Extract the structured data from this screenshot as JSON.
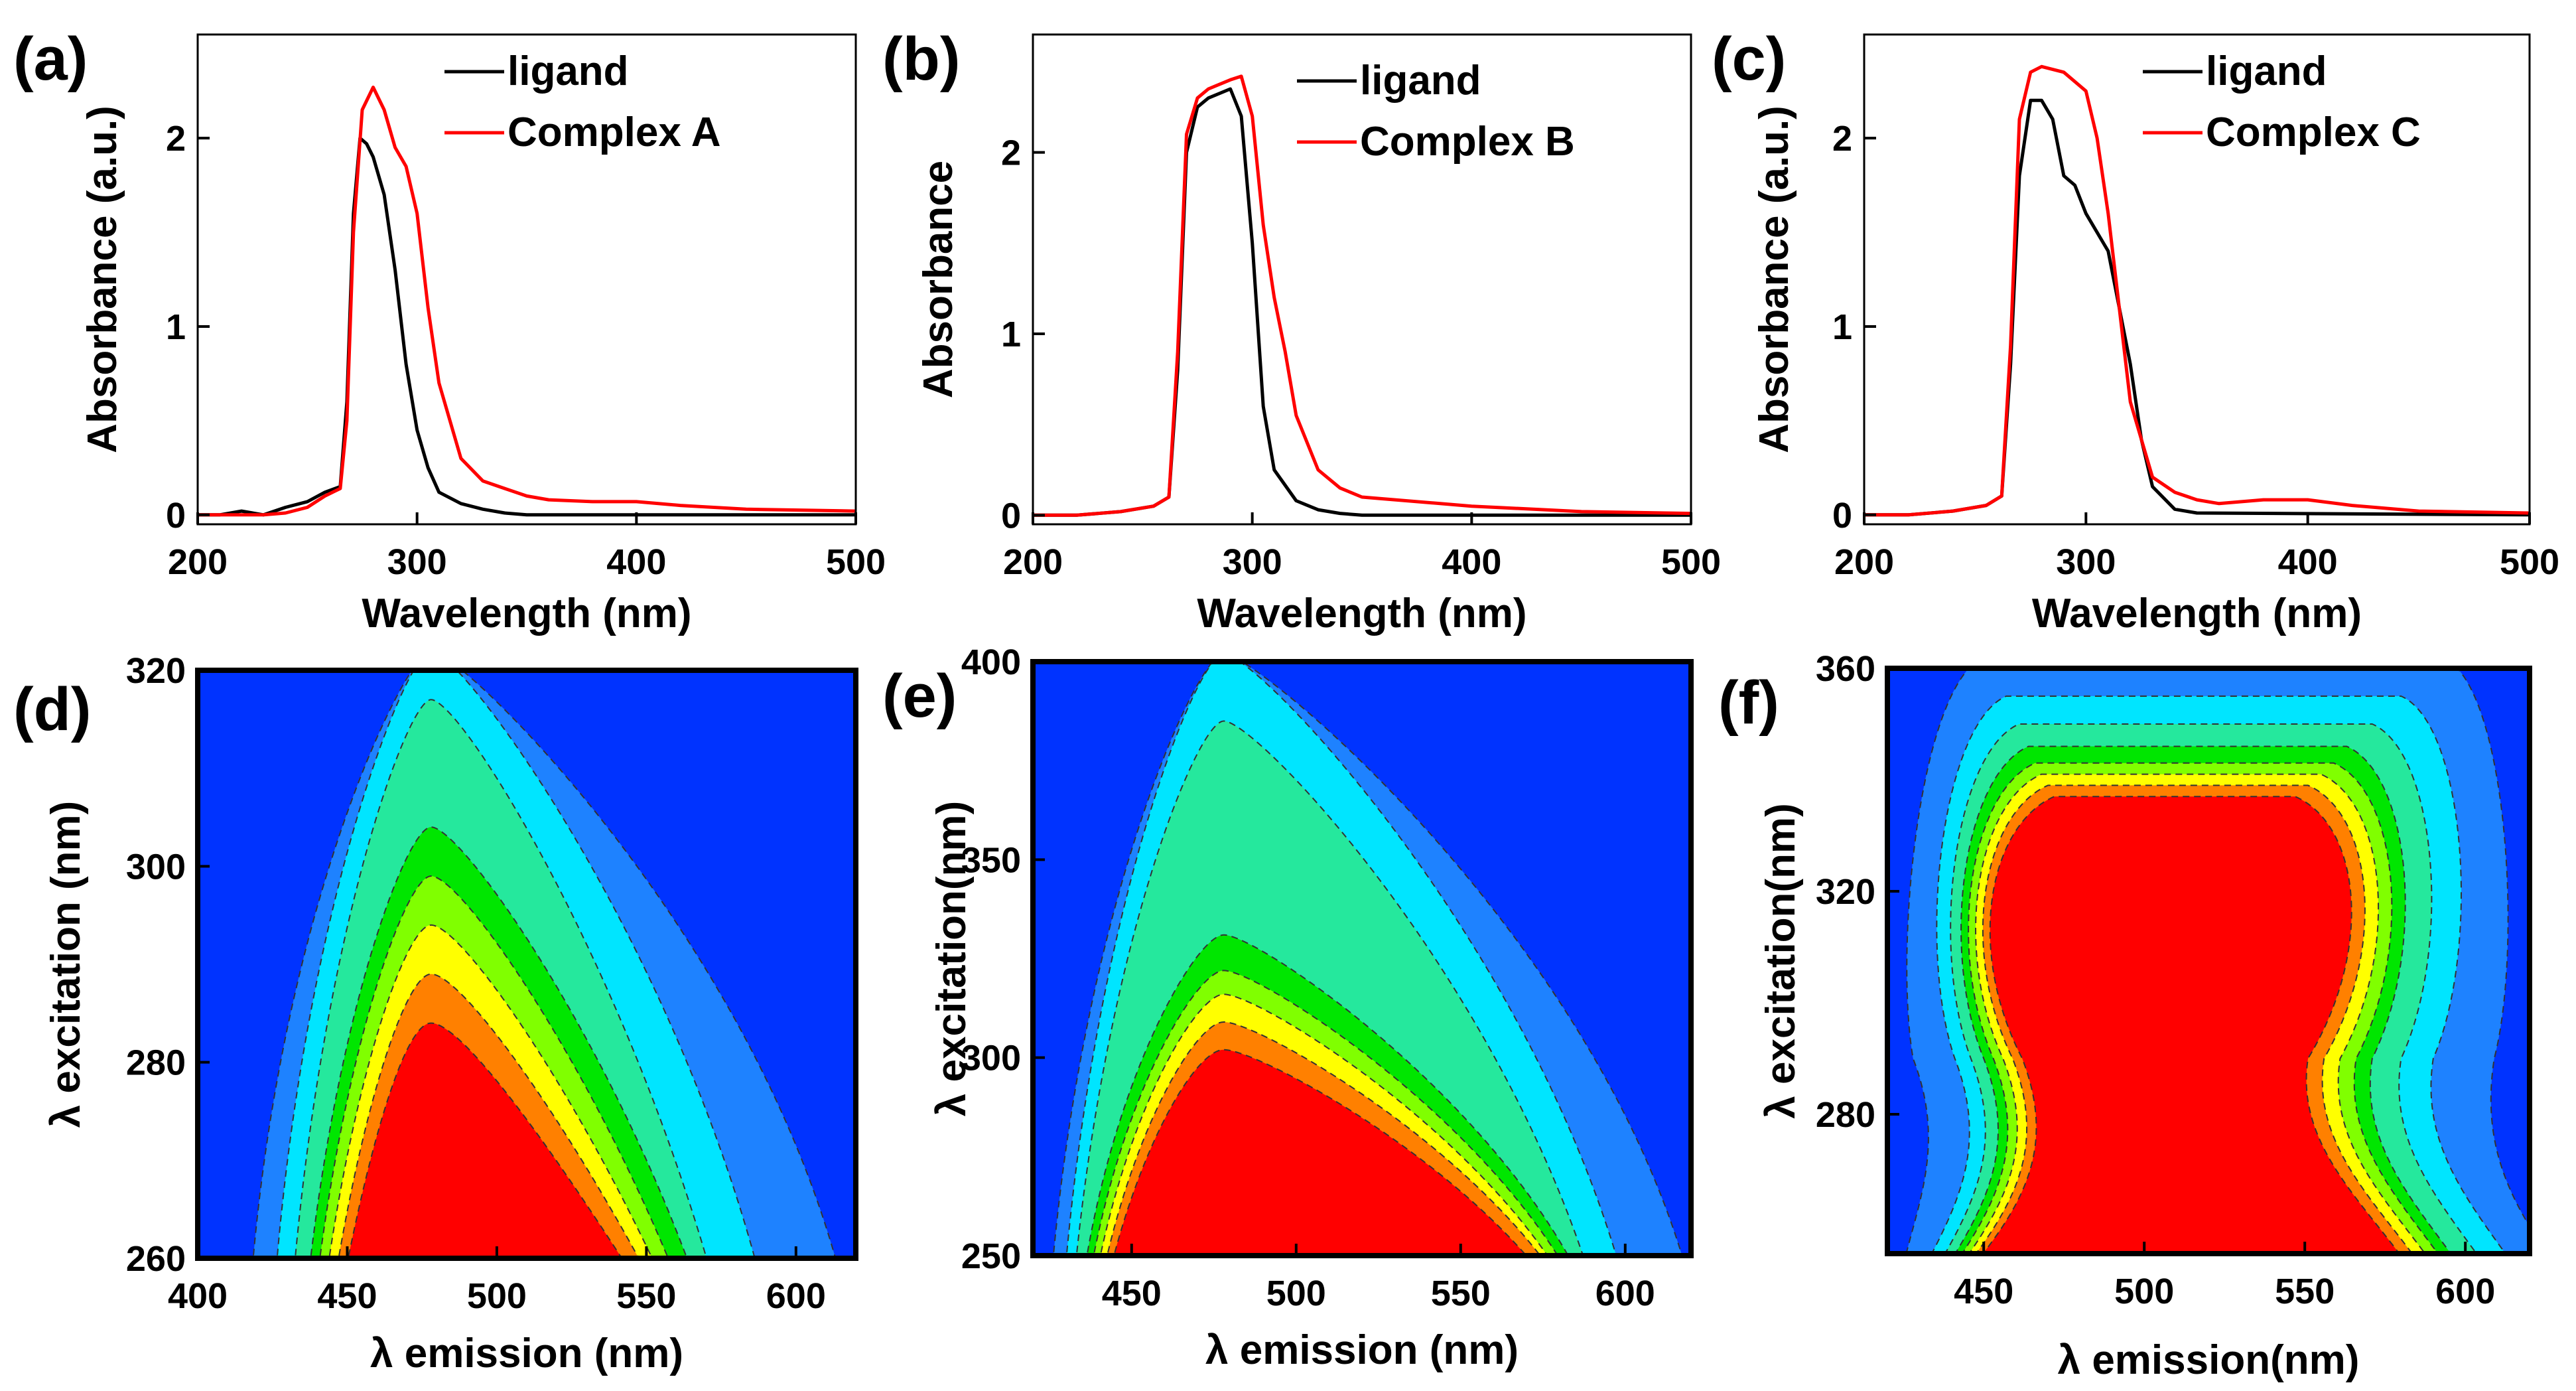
{
  "chart_data": [
    {
      "id": "a",
      "type": "line",
      "panel_label": "(a)",
      "xlabel": "Wavelength (nm)",
      "ylabel": "Absorbance (a.u.)",
      "xlim": [
        200,
        500
      ],
      "ylim": [
        -0.05,
        2.55
      ],
      "xticks": [
        200,
        300,
        400,
        500
      ],
      "yticks": [
        0,
        1,
        2
      ],
      "legend_position": "top-right",
      "series": [
        {
          "name": "ligand",
          "color": "#000000",
          "x": [
            200,
            210,
            220,
            230,
            240,
            250,
            258,
            265,
            268,
            271,
            274,
            277,
            280,
            285,
            290,
            295,
            300,
            305,
            310,
            320,
            330,
            340,
            350,
            400,
            500
          ],
          "y": [
            0.0,
            0.0,
            0.02,
            0.0,
            0.04,
            0.07,
            0.12,
            0.15,
            0.6,
            1.6,
            2.0,
            1.97,
            1.9,
            1.7,
            1.3,
            0.8,
            0.45,
            0.25,
            0.12,
            0.06,
            0.03,
            0.01,
            0.0,
            0.0,
            0.0
          ]
        },
        {
          "name": "Complex A",
          "color": "#ff0000",
          "x": [
            200,
            210,
            220,
            230,
            240,
            250,
            258,
            265,
            268,
            271,
            275,
            280,
            285,
            290,
            295,
            300,
            305,
            310,
            320,
            330,
            340,
            350,
            360,
            380,
            400,
            420,
            450,
            500
          ],
          "y": [
            0.0,
            0.0,
            0.0,
            0.0,
            0.01,
            0.04,
            0.1,
            0.14,
            0.5,
            1.5,
            2.15,
            2.27,
            2.15,
            1.95,
            1.85,
            1.6,
            1.1,
            0.7,
            0.3,
            0.18,
            0.14,
            0.1,
            0.08,
            0.07,
            0.07,
            0.05,
            0.03,
            0.02
          ]
        }
      ]
    },
    {
      "id": "b",
      "type": "line",
      "panel_label": "(b)",
      "xlabel": "Wavelength (nm)",
      "ylabel": "Absorbance",
      "xlim": [
        200,
        500
      ],
      "ylim": [
        -0.05,
        2.65
      ],
      "xticks": [
        200,
        300,
        400,
        500
      ],
      "yticks": [
        0,
        1,
        2
      ],
      "legend_position": "top-right",
      "series": [
        {
          "name": "ligand",
          "color": "#000000",
          "x": [
            200,
            220,
            240,
            255,
            262,
            266,
            270,
            275,
            280,
            290,
            295,
            300,
            305,
            310,
            320,
            330,
            340,
            350,
            500
          ],
          "y": [
            0.0,
            0.0,
            0.02,
            0.05,
            0.1,
            0.8,
            2.0,
            2.25,
            2.3,
            2.35,
            2.2,
            1.5,
            0.6,
            0.25,
            0.08,
            0.03,
            0.01,
            0.0,
            0.0
          ]
        },
        {
          "name": "Complex B",
          "color": "#ff0000",
          "x": [
            200,
            220,
            240,
            255,
            262,
            266,
            270,
            275,
            280,
            290,
            295,
            300,
            305,
            310,
            315,
            320,
            330,
            340,
            350,
            400,
            450,
            500
          ],
          "y": [
            0.0,
            0.0,
            0.02,
            0.05,
            0.1,
            0.9,
            2.1,
            2.3,
            2.35,
            2.4,
            2.42,
            2.2,
            1.6,
            1.2,
            0.9,
            0.55,
            0.25,
            0.15,
            0.1,
            0.05,
            0.02,
            0.01
          ]
        }
      ]
    },
    {
      "id": "c",
      "type": "line",
      "panel_label": "(c)",
      "xlabel": "Wavelength (nm)",
      "ylabel": "Absorbance (a.u.)",
      "xlim": [
        200,
        500
      ],
      "ylim": [
        -0.05,
        2.55
      ],
      "xticks": [
        200,
        300,
        400,
        500
      ],
      "yticks": [
        0,
        1,
        2
      ],
      "legend_position": "top-right",
      "series": [
        {
          "name": "ligand",
          "color": "#000000",
          "x": [
            200,
            220,
            240,
            255,
            262,
            266,
            270,
            275,
            280,
            285,
            290,
            295,
            300,
            310,
            320,
            325,
            330,
            340,
            350,
            500
          ],
          "y": [
            0.0,
            0.0,
            0.02,
            0.05,
            0.1,
            0.8,
            1.8,
            2.2,
            2.2,
            2.1,
            1.8,
            1.75,
            1.6,
            1.4,
            0.8,
            0.4,
            0.15,
            0.03,
            0.01,
            0.0
          ]
        },
        {
          "name": "Complex C",
          "color": "#ff0000",
          "x": [
            200,
            220,
            240,
            255,
            262,
            266,
            270,
            275,
            280,
            290,
            300,
            305,
            310,
            315,
            320,
            330,
            340,
            350,
            360,
            380,
            400,
            420,
            450,
            500
          ],
          "y": [
            0.0,
            0.0,
            0.02,
            0.05,
            0.1,
            0.9,
            2.1,
            2.35,
            2.38,
            2.35,
            2.25,
            2.0,
            1.6,
            1.1,
            0.6,
            0.2,
            0.12,
            0.08,
            0.06,
            0.08,
            0.08,
            0.05,
            0.02,
            0.01
          ]
        }
      ]
    },
    {
      "id": "d",
      "type": "heatmap",
      "panel_label": "(d)",
      "xlabel": "λ emission (nm)",
      "ylabel": "λ excitation (nm)",
      "xlim": [
        400,
        620
      ],
      "ylim": [
        260,
        320
      ],
      "xticks": [
        400,
        450,
        500,
        550,
        600
      ],
      "yticks": [
        260,
        280,
        300,
        320
      ],
      "colors": [
        "#0033ff",
        "#1e82ff",
        "#00e5ff",
        "#25e89d",
        "#00e600",
        "#80ff00",
        "#ffff00",
        "#ff8000",
        "#ff0000"
      ],
      "contour_levels": [
        {
          "level": 1,
          "base_left": 418,
          "base_right": 615,
          "peak_x": 478,
          "top_y": 322
        },
        {
          "level": 2,
          "base_left": 426,
          "base_right": 588,
          "peak_x": 478,
          "top_y": 322
        },
        {
          "level": 3,
          "base_left": 432,
          "base_right": 572,
          "peak_x": 478,
          "top_y": 317
        },
        {
          "level": 4,
          "base_left": 437,
          "base_right": 566,
          "peak_x": 478,
          "top_y": 304
        },
        {
          "level": 5,
          "base_left": 440,
          "base_right": 560,
          "peak_x": 478,
          "top_y": 299
        },
        {
          "level": 6,
          "base_left": 443,
          "base_right": 555,
          "peak_x": 478,
          "top_y": 294
        },
        {
          "level": 7,
          "base_left": 446,
          "base_right": 551,
          "peak_x": 478,
          "top_y": 289
        },
        {
          "level": 8,
          "base_left": 449,
          "base_right": 546,
          "peak_x": 478,
          "top_y": 284
        }
      ]
    },
    {
      "id": "e",
      "type": "heatmap",
      "panel_label": "(e)",
      "xlabel": "λ emission (nm)",
      "ylabel": "λ excitation(nm)",
      "xlim": [
        420,
        620
      ],
      "ylim": [
        250,
        400
      ],
      "xticks": [
        450,
        500,
        550,
        600
      ],
      "yticks": [
        250,
        300,
        350,
        400
      ],
      "colors": [
        "#0033ff",
        "#1e82ff",
        "#00e5ff",
        "#25e89d",
        "#00e600",
        "#80ff00",
        "#ffff00",
        "#ff8000",
        "#ff0000"
      ],
      "contour_levels": [
        {
          "level": 1,
          "base_left": 426,
          "base_right": 618,
          "peak_x": 478,
          "top_y": 402
        },
        {
          "level": 2,
          "base_left": 430,
          "base_right": 598,
          "peak_x": 478,
          "top_y": 402
        },
        {
          "level": 3,
          "base_left": 433,
          "base_right": 588,
          "peak_x": 478,
          "top_y": 385
        },
        {
          "level": 4,
          "base_left": 436,
          "base_right": 584,
          "peak_x": 478,
          "top_y": 331
        },
        {
          "level": 5,
          "base_left": 438,
          "base_right": 581,
          "peak_x": 478,
          "top_y": 322
        },
        {
          "level": 6,
          "base_left": 440,
          "base_right": 578,
          "peak_x": 478,
          "top_y": 316
        },
        {
          "level": 7,
          "base_left": 442,
          "base_right": 576,
          "peak_x": 478,
          "top_y": 309
        },
        {
          "level": 8,
          "base_left": 444,
          "base_right": 572,
          "peak_x": 478,
          "top_y": 302
        }
      ]
    },
    {
      "id": "f",
      "type": "heatmap",
      "panel_label": "(f)",
      "xlabel": "λ emission(nm)",
      "ylabel": "λ excitation(nm)",
      "xlim": [
        420,
        620
      ],
      "ylim": [
        255,
        360
      ],
      "xticks": [
        450,
        500,
        550,
        600
      ],
      "yticks": [
        280,
        320,
        360
      ],
      "colors": [
        "#0033ff",
        "#1e82ff",
        "#00e5ff",
        "#25e89d",
        "#00e600",
        "#80ff00",
        "#ffff00",
        "#ff8000",
        "#ff0000"
      ],
      "contour_levels": [
        {
          "level": 1,
          "left_x": 430,
          "right_x": 613,
          "top_y": 362,
          "waist": 0
        },
        {
          "level": 2,
          "left_x": 437,
          "right_x": 600,
          "top_y": 355,
          "waist": 6
        },
        {
          "level": 3,
          "left_x": 441,
          "right_x": 591,
          "top_y": 350,
          "waist": 7
        },
        {
          "level": 4,
          "left_x": 444,
          "right_x": 583,
          "top_y": 346,
          "waist": 8
        },
        {
          "level": 5,
          "left_x": 446,
          "right_x": 579,
          "top_y": 343,
          "waist": 9
        },
        {
          "level": 6,
          "left_x": 448,
          "right_x": 575,
          "top_y": 341,
          "waist": 10
        },
        {
          "level": 7,
          "left_x": 450,
          "right_x": 571,
          "top_y": 339,
          "waist": 11
        },
        {
          "level": 8,
          "left_x": 452,
          "right_x": 567,
          "top_y": 337,
          "waist": 12
        }
      ]
    }
  ]
}
